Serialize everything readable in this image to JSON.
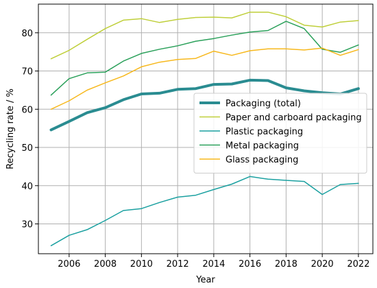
{
  "chart_data": {
    "type": "line",
    "xlabel": "Year",
    "ylabel": "Recycling rate / %",
    "xlim": [
      2004.3,
      2022.8
    ],
    "ylim": [
      22.2,
      87.5
    ],
    "xticks": [
      2006,
      2008,
      2010,
      2012,
      2014,
      2016,
      2018,
      2020,
      2022
    ],
    "yticks": [
      30,
      40,
      50,
      60,
      70,
      80
    ],
    "grid": true,
    "legend_position": "center-right",
    "x": [
      2005,
      2006,
      2007,
      2008,
      2009,
      2010,
      2011,
      2012,
      2013,
      2014,
      2015,
      2016,
      2017,
      2018,
      2019,
      2020,
      2021,
      2022
    ],
    "series": [
      {
        "name": "Packaging (total)",
        "color": "#2a8c91",
        "width": 4,
        "values": [
          54.6,
          56.8,
          59.1,
          60.4,
          62.5,
          64.0,
          64.2,
          65.2,
          65.4,
          66.5,
          66.6,
          67.6,
          67.5,
          65.6,
          64.8,
          64.3,
          64.0,
          65.4
        ]
      },
      {
        "name": "Paper and carboard packaging",
        "color": "#bfcf3a",
        "width": 1.5,
        "values": [
          73.2,
          75.4,
          78.3,
          81.1,
          83.3,
          83.7,
          82.7,
          83.5,
          84.0,
          84.1,
          83.9,
          85.4,
          85.4,
          84.2,
          82.0,
          81.5,
          82.8,
          83.2
        ]
      },
      {
        "name": "Plastic packaging",
        "color": "#1aa0a0",
        "width": 1.5,
        "values": [
          24.3,
          27.0,
          28.5,
          30.9,
          33.5,
          34.0,
          35.6,
          37.0,
          37.5,
          39.0,
          40.4,
          42.4,
          41.7,
          41.4,
          41.1,
          37.7,
          40.3,
          40.6
        ]
      },
      {
        "name": "Metal packaging",
        "color": "#2aa05a",
        "width": 1.5,
        "values": [
          63.7,
          68.0,
          69.5,
          69.7,
          72.6,
          74.6,
          75.7,
          76.6,
          77.8,
          78.5,
          79.4,
          80.2,
          80.6,
          83.0,
          81.1,
          75.7,
          74.9,
          76.8
        ]
      },
      {
        "name": "Glass packaging",
        "color": "#f7b81c",
        "width": 1.5,
        "values": [
          60.0,
          62.2,
          65.0,
          66.9,
          68.7,
          71.1,
          72.3,
          73.0,
          73.3,
          75.2,
          74.1,
          75.3,
          75.8,
          75.8,
          75.5,
          76.0,
          74.1,
          75.6
        ]
      }
    ]
  }
}
